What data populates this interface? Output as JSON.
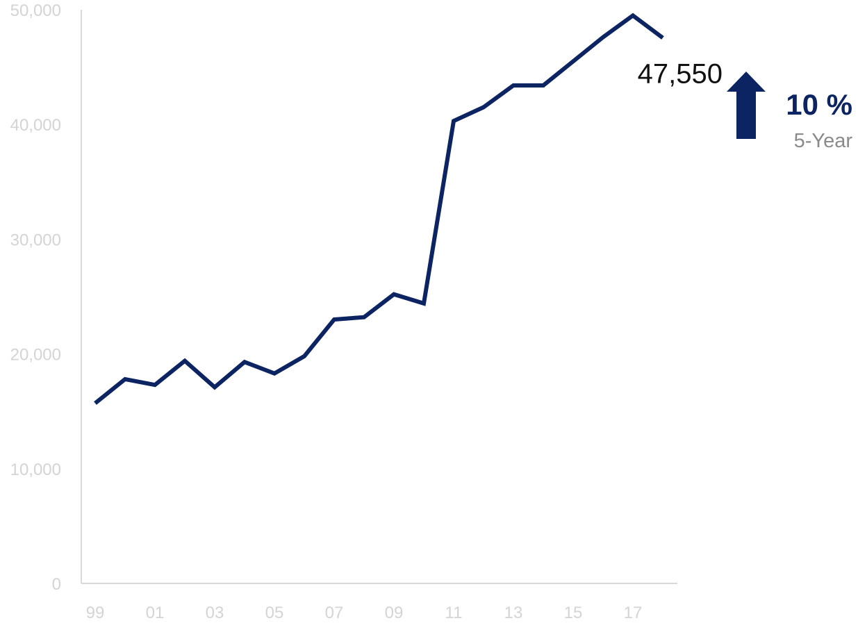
{
  "chart_data": {
    "type": "line",
    "x": [
      "99",
      "00",
      "01",
      "02",
      "03",
      "04",
      "05",
      "06",
      "07",
      "08",
      "09",
      "10",
      "11",
      "12",
      "13",
      "14",
      "15",
      "16",
      "17",
      "18"
    ],
    "x_tick_labels": [
      "99",
      "01",
      "03",
      "05",
      "07",
      "09",
      "11",
      "13",
      "15",
      "17"
    ],
    "y_tick_labels": [
      "0",
      "10,000",
      "20,000",
      "30,000",
      "40,000",
      "50,000"
    ],
    "ylim": [
      0,
      50000
    ],
    "series": [
      {
        "values": [
          15700,
          17800,
          17300,
          19400,
          17100,
          19300,
          18300,
          19800,
          23000,
          23200,
          25200,
          24400,
          40300,
          41500,
          43400,
          43400,
          45500,
          47600,
          49500,
          47550
        ],
        "color": "#0c2461"
      }
    ],
    "annotations": {
      "last_value": "47,550",
      "change": "10 %",
      "change_direction": "up",
      "change_period": "5-Year"
    },
    "grid": false,
    "legend": "none",
    "colors": {
      "line": "#0c2461",
      "accent": "#0c2461",
      "axis": "#d9d9d9",
      "tick_text": "#d4d4d4",
      "period_text": "#8a8a8a"
    }
  }
}
